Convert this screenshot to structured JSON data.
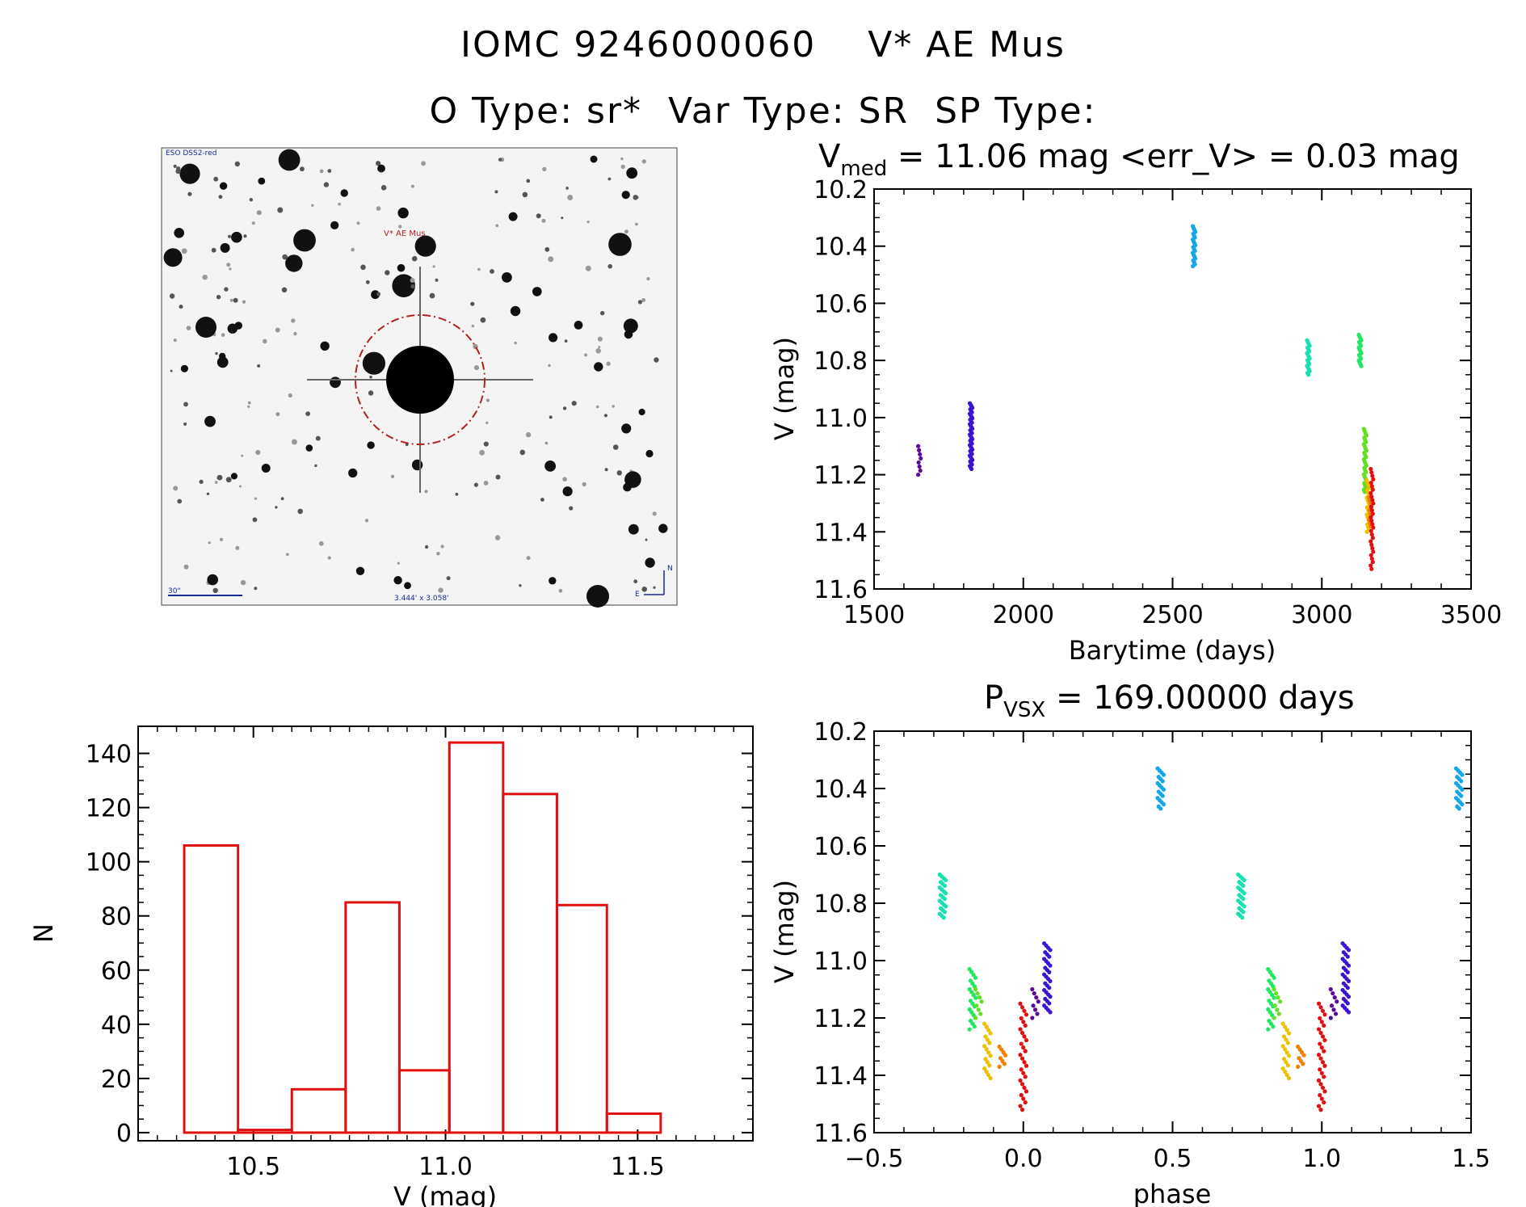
{
  "header": {
    "line1": "IOMC 9246000060    V* AE Mus",
    "line2": "O Type: sr*  Var Type: SR  SP Type:"
  },
  "finder": {
    "survey_label": "ESO DSS2-red",
    "target_label": "V* AE Mus",
    "scale_label": "30\"",
    "fov_label": "3.444' x 3.058'",
    "north_label": "N",
    "east_label": "E",
    "star_color": "#111111",
    "circle_color": "#b02020"
  },
  "colors": {
    "hist": "#e01010",
    "palette": [
      "#5a0a96",
      "#3a14d2",
      "#12a8e8",
      "#18e0b0",
      "#20e860",
      "#60e020",
      "#f0c000",
      "#f08000",
      "#e01010"
    ]
  },
  "chart_data": [
    {
      "id": "lightcurve",
      "type": "scatter",
      "title_main": "V",
      "title_sub": "med",
      "title_rest": " = 11.06 mag <err_V> = 0.03 mag",
      "xlabel": "Barytime (days)",
      "ylabel": "V (mag)",
      "xlim": [
        1500,
        3500
      ],
      "ylim": [
        11.6,
        10.2
      ],
      "xticks": [
        1500,
        2000,
        2500,
        3000,
        3500
      ],
      "xtick_labels": [
        "1500",
        "2000",
        "2500",
        "3000",
        "3500"
      ],
      "yticks": [
        10.2,
        10.4,
        10.6,
        10.8,
        11.0,
        11.2,
        11.4,
        11.6
      ],
      "ytick_labels": [
        "10.2",
        "10.4",
        "10.6",
        "10.8",
        "11.0",
        "11.2",
        "11.4",
        "11.6"
      ],
      "series": [
        {
          "name": "s1",
          "color_index": 0,
          "x": 1652,
          "ymin": 11.1,
          "ymax": 11.2,
          "n": 8
        },
        {
          "name": "s2",
          "color_index": 1,
          "x": 1825,
          "ymin": 10.95,
          "ymax": 11.18,
          "n": 45
        },
        {
          "name": "s3",
          "color_index": 2,
          "x": 2572,
          "ymin": 10.33,
          "ymax": 10.47,
          "n": 22
        },
        {
          "name": "s4",
          "color_index": 3,
          "x": 2955,
          "ymin": 10.73,
          "ymax": 10.85,
          "n": 20
        },
        {
          "name": "s5",
          "color_index": 4,
          "x": 3128,
          "ymin": 10.71,
          "ymax": 10.82,
          "n": 18
        },
        {
          "name": "s6",
          "color_index": 5,
          "x": 3145,
          "ymin": 11.04,
          "ymax": 11.26,
          "n": 30
        },
        {
          "name": "s7",
          "color_index": 6,
          "x": 3155,
          "ymin": 11.22,
          "ymax": 11.4,
          "n": 22
        },
        {
          "name": "s8",
          "color_index": 7,
          "x": 3162,
          "ymin": 11.28,
          "ymax": 11.38,
          "n": 10
        },
        {
          "name": "s9",
          "color_index": 8,
          "x": 3168,
          "ymin": 11.18,
          "ymax": 11.53,
          "n": 30
        }
      ]
    },
    {
      "id": "histogram",
      "type": "bar",
      "xlabel": "V (mag)",
      "ylabel": "N",
      "xlim": [
        10.2,
        11.8
      ],
      "ylim": [
        -3,
        150
      ],
      "xticks": [
        10.5,
        11.0,
        11.5
      ],
      "xtick_labels": [
        "10.5",
        "11.0",
        "11.5"
      ],
      "yticks": [
        0,
        20,
        40,
        60,
        80,
        100,
        120,
        140
      ],
      "ytick_labels": [
        "0",
        "20",
        "40",
        "60",
        "80",
        "100",
        "120",
        "140"
      ],
      "bin_edges": [
        10.32,
        10.46,
        10.6,
        10.74,
        10.88,
        11.01,
        11.15,
        11.29,
        11.42,
        11.56
      ],
      "values": [
        106,
        1,
        16,
        85,
        23,
        144,
        125,
        84,
        7
      ]
    },
    {
      "id": "phased",
      "type": "scatter",
      "title_main": "P",
      "title_sub": "VSX",
      "title_rest": " = 169.00000 days",
      "xlabel": "phase",
      "ylabel": "V (mag)",
      "xlim": [
        -0.5,
        1.5
      ],
      "ylim": [
        11.6,
        10.2
      ],
      "xticks": [
        -0.5,
        0.0,
        0.5,
        1.0,
        1.5
      ],
      "xtick_labels": [
        "−0.5",
        "0.0",
        "0.5",
        "1.0",
        "1.5"
      ],
      "yticks": [
        10.2,
        10.4,
        10.6,
        10.8,
        11.0,
        11.2,
        11.4,
        11.6
      ],
      "ytick_labels": [
        "10.2",
        "10.4",
        "10.6",
        "10.8",
        "11.0",
        "11.2",
        "11.4",
        "11.6"
      ],
      "series": [
        {
          "name": "p1",
          "color_index": 3,
          "x": -0.27,
          "ymin": 10.7,
          "ymax": 10.85,
          "n": 24
        },
        {
          "name": "p2",
          "color_index": 4,
          "x": -0.17,
          "ymin": 11.03,
          "ymax": 11.24,
          "n": 22
        },
        {
          "name": "p3",
          "color_index": 5,
          "x": -0.15,
          "ymin": 11.1,
          "ymax": 11.2,
          "n": 8
        },
        {
          "name": "p4",
          "color_index": 6,
          "x": -0.12,
          "ymin": 11.22,
          "ymax": 11.41,
          "n": 18
        },
        {
          "name": "p5",
          "color_index": 7,
          "x": -0.07,
          "ymin": 11.3,
          "ymax": 11.37,
          "n": 8
        },
        {
          "name": "p6",
          "color_index": 8,
          "x": 0.0,
          "ymin": 11.15,
          "ymax": 11.52,
          "n": 30
        },
        {
          "name": "p7",
          "color_index": 0,
          "x": 0.04,
          "ymin": 11.1,
          "ymax": 11.2,
          "n": 8
        },
        {
          "name": "p8",
          "color_index": 1,
          "x": 0.08,
          "ymin": 10.94,
          "ymax": 11.18,
          "n": 32
        },
        {
          "name": "p9",
          "color_index": 2,
          "x": 0.46,
          "ymin": 10.33,
          "ymax": 10.47,
          "n": 20
        },
        {
          "name": "p10",
          "color_index": 3,
          "x": 0.73,
          "ymin": 10.7,
          "ymax": 10.85,
          "n": 24
        },
        {
          "name": "p11",
          "color_index": 4,
          "x": 0.83,
          "ymin": 11.03,
          "ymax": 11.24,
          "n": 22
        },
        {
          "name": "p12",
          "color_index": 5,
          "x": 0.85,
          "ymin": 11.1,
          "ymax": 11.2,
          "n": 8
        },
        {
          "name": "p13",
          "color_index": 6,
          "x": 0.88,
          "ymin": 11.22,
          "ymax": 11.41,
          "n": 18
        },
        {
          "name": "p14",
          "color_index": 7,
          "x": 0.93,
          "ymin": 11.3,
          "ymax": 11.37,
          "n": 8
        },
        {
          "name": "p15",
          "color_index": 8,
          "x": 1.0,
          "ymin": 11.15,
          "ymax": 11.52,
          "n": 30
        },
        {
          "name": "p16",
          "color_index": 0,
          "x": 1.04,
          "ymin": 11.1,
          "ymax": 11.2,
          "n": 8
        },
        {
          "name": "p17",
          "color_index": 1,
          "x": 1.08,
          "ymin": 10.94,
          "ymax": 11.18,
          "n": 32
        },
        {
          "name": "p18",
          "color_index": 2,
          "x": 1.46,
          "ymin": 10.33,
          "ymax": 10.47,
          "n": 20
        }
      ]
    }
  ]
}
